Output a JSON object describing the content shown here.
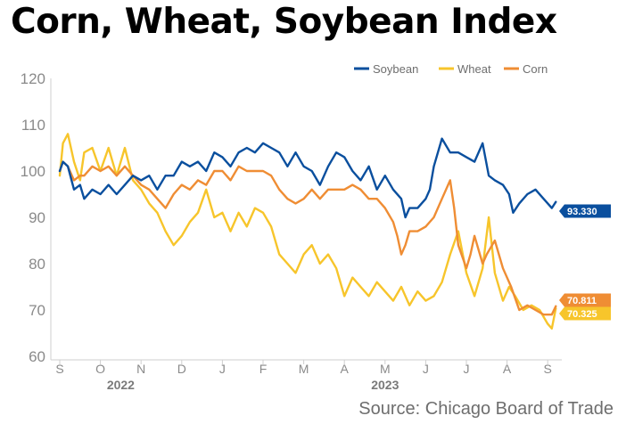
{
  "chart_data": {
    "type": "line",
    "title": "Corn, Wheat, Soybean Index",
    "source": "Source: Chicago Board of Trade",
    "ylim": [
      60,
      120
    ],
    "yticks": [
      60,
      70,
      80,
      90,
      100,
      110,
      120
    ],
    "x_month_labels": [
      "S",
      "O",
      "N",
      "D",
      "J",
      "F",
      "M",
      "A",
      "M",
      "J",
      "J",
      "A",
      "S"
    ],
    "year_labels": [
      {
        "text": "2022",
        "month_index": 1.5
      },
      {
        "text": "2023",
        "month_index": 8
      }
    ],
    "xlim_months": [
      -0.2,
      12.2
    ],
    "grid": false,
    "legend": "top-right",
    "series": [
      {
        "name": "Soybean",
        "color": "#0a4f9e",
        "end_value": "93.330",
        "points": [
          [
            0,
            100
          ],
          [
            0.08,
            102
          ],
          [
            0.2,
            101
          ],
          [
            0.35,
            96
          ],
          [
            0.5,
            97
          ],
          [
            0.6,
            94
          ],
          [
            0.8,
            96
          ],
          [
            1,
            95
          ],
          [
            1.2,
            97
          ],
          [
            1.4,
            95
          ],
          [
            1.6,
            97
          ],
          [
            1.8,
            99
          ],
          [
            2,
            98
          ],
          [
            2.2,
            99
          ],
          [
            2.4,
            96
          ],
          [
            2.6,
            99
          ],
          [
            2.8,
            99
          ],
          [
            3,
            102
          ],
          [
            3.2,
            101
          ],
          [
            3.4,
            102
          ],
          [
            3.6,
            100
          ],
          [
            3.8,
            104
          ],
          [
            4,
            103
          ],
          [
            4.2,
            101
          ],
          [
            4.4,
            104
          ],
          [
            4.6,
            105
          ],
          [
            4.8,
            104
          ],
          [
            5,
            106
          ],
          [
            5.2,
            105
          ],
          [
            5.4,
            104
          ],
          [
            5.6,
            101
          ],
          [
            5.8,
            104
          ],
          [
            6,
            101
          ],
          [
            6.2,
            100
          ],
          [
            6.4,
            97
          ],
          [
            6.6,
            101
          ],
          [
            6.8,
            104
          ],
          [
            7,
            103
          ],
          [
            7.2,
            100
          ],
          [
            7.4,
            98
          ],
          [
            7.6,
            101
          ],
          [
            7.8,
            96
          ],
          [
            8,
            99
          ],
          [
            8.2,
            96
          ],
          [
            8.4,
            94
          ],
          [
            8.5,
            90
          ],
          [
            8.6,
            92
          ],
          [
            8.8,
            92
          ],
          [
            9,
            94
          ],
          [
            9.1,
            96
          ],
          [
            9.2,
            101
          ],
          [
            9.4,
            107
          ],
          [
            9.6,
            104
          ],
          [
            9.8,
            104
          ],
          [
            10,
            103
          ],
          [
            10.2,
            102
          ],
          [
            10.4,
            106
          ],
          [
            10.55,
            99
          ],
          [
            10.7,
            98
          ],
          [
            10.9,
            97
          ],
          [
            11.05,
            95
          ],
          [
            11.15,
            91
          ],
          [
            11.3,
            93
          ],
          [
            11.5,
            95
          ],
          [
            11.7,
            96
          ],
          [
            11.9,
            94
          ],
          [
            12.1,
            92
          ],
          [
            12.2,
            93.33
          ]
        ]
      },
      {
        "name": "Wheat",
        "color": "#f7c52b",
        "end_value": "70.325",
        "points": [
          [
            0,
            99
          ],
          [
            0.08,
            106
          ],
          [
            0.2,
            108
          ],
          [
            0.35,
            102
          ],
          [
            0.5,
            98
          ],
          [
            0.6,
            104
          ],
          [
            0.8,
            105
          ],
          [
            1,
            100
          ],
          [
            1.2,
            105
          ],
          [
            1.4,
            99
          ],
          [
            1.6,
            105
          ],
          [
            1.8,
            98
          ],
          [
            2,
            96
          ],
          [
            2.2,
            93
          ],
          [
            2.4,
            91
          ],
          [
            2.6,
            87
          ],
          [
            2.8,
            84
          ],
          [
            3,
            86
          ],
          [
            3.2,
            89
          ],
          [
            3.4,
            91
          ],
          [
            3.6,
            96
          ],
          [
            3.8,
            90
          ],
          [
            4,
            91
          ],
          [
            4.2,
            87
          ],
          [
            4.4,
            91
          ],
          [
            4.6,
            88
          ],
          [
            4.8,
            92
          ],
          [
            5,
            91
          ],
          [
            5.2,
            88
          ],
          [
            5.4,
            82
          ],
          [
            5.6,
            80
          ],
          [
            5.8,
            78
          ],
          [
            6,
            82
          ],
          [
            6.2,
            84
          ],
          [
            6.4,
            80
          ],
          [
            6.6,
            82
          ],
          [
            6.8,
            79
          ],
          [
            7,
            73
          ],
          [
            7.2,
            77
          ],
          [
            7.4,
            75
          ],
          [
            7.6,
            73
          ],
          [
            7.8,
            76
          ],
          [
            8,
            74
          ],
          [
            8.2,
            72
          ],
          [
            8.4,
            75
          ],
          [
            8.6,
            71
          ],
          [
            8.8,
            74
          ],
          [
            9,
            72
          ],
          [
            9.2,
            73
          ],
          [
            9.4,
            76
          ],
          [
            9.6,
            82
          ],
          [
            9.8,
            87
          ],
          [
            10,
            78
          ],
          [
            10.2,
            73
          ],
          [
            10.4,
            79
          ],
          [
            10.55,
            90
          ],
          [
            10.7,
            78
          ],
          [
            10.9,
            72
          ],
          [
            11.05,
            75
          ],
          [
            11.2,
            73
          ],
          [
            11.4,
            70
          ],
          [
            11.6,
            71
          ],
          [
            11.8,
            70
          ],
          [
            12,
            67
          ],
          [
            12.1,
            66
          ],
          [
            12.2,
            70.325
          ]
        ]
      },
      {
        "name": "Corn",
        "color": "#ef8d34",
        "end_value": "70.811",
        "points": [
          [
            0,
            100
          ],
          [
            0.08,
            102
          ],
          [
            0.2,
            101
          ],
          [
            0.35,
            98
          ],
          [
            0.5,
            99
          ],
          [
            0.6,
            99
          ],
          [
            0.8,
            101
          ],
          [
            1,
            100
          ],
          [
            1.2,
            101
          ],
          [
            1.4,
            99
          ],
          [
            1.6,
            101
          ],
          [
            1.8,
            99
          ],
          [
            2,
            97
          ],
          [
            2.2,
            96
          ],
          [
            2.4,
            94
          ],
          [
            2.6,
            92
          ],
          [
            2.8,
            95
          ],
          [
            3,
            97
          ],
          [
            3.2,
            96
          ],
          [
            3.4,
            98
          ],
          [
            3.6,
            97
          ],
          [
            3.8,
            100
          ],
          [
            4,
            100
          ],
          [
            4.2,
            98
          ],
          [
            4.4,
            101
          ],
          [
            4.6,
            100
          ],
          [
            4.8,
            100
          ],
          [
            5,
            100
          ],
          [
            5.2,
            99
          ],
          [
            5.4,
            96
          ],
          [
            5.6,
            94
          ],
          [
            5.8,
            93
          ],
          [
            6,
            94
          ],
          [
            6.2,
            96
          ],
          [
            6.4,
            94
          ],
          [
            6.6,
            96
          ],
          [
            6.8,
            96
          ],
          [
            7,
            96
          ],
          [
            7.2,
            97
          ],
          [
            7.4,
            96
          ],
          [
            7.6,
            94
          ],
          [
            7.8,
            94
          ],
          [
            8,
            92
          ],
          [
            8.2,
            89
          ],
          [
            8.3,
            86
          ],
          [
            8.4,
            82
          ],
          [
            8.5,
            84
          ],
          [
            8.6,
            87
          ],
          [
            8.8,
            87
          ],
          [
            9,
            88
          ],
          [
            9.2,
            90
          ],
          [
            9.4,
            94
          ],
          [
            9.6,
            98
          ],
          [
            9.7,
            92
          ],
          [
            9.8,
            84
          ],
          [
            10,
            79
          ],
          [
            10.1,
            82
          ],
          [
            10.2,
            86
          ],
          [
            10.4,
            80
          ],
          [
            10.5,
            82
          ],
          [
            10.7,
            85
          ],
          [
            10.9,
            79
          ],
          [
            11.1,
            75
          ],
          [
            11.3,
            70
          ],
          [
            11.5,
            71
          ],
          [
            11.7,
            70
          ],
          [
            11.9,
            69
          ],
          [
            12,
            69
          ],
          [
            12.1,
            69
          ],
          [
            12.2,
            70.811
          ]
        ]
      }
    ]
  }
}
